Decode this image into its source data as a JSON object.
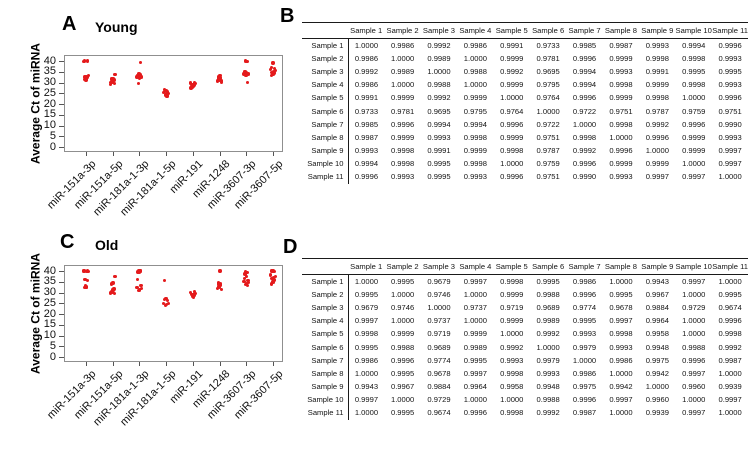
{
  "figure": {
    "panels": [
      {
        "label": "A",
        "title": "Young"
      },
      {
        "label": "B"
      },
      {
        "label": "C",
        "title": "Old"
      },
      {
        "label": "D"
      }
    ]
  },
  "colors": {
    "point": "#e41a1c",
    "axis_frame": "#8f8f8f",
    "text": "#000000",
    "table_rule": "#1a1a1a"
  },
  "chart_data": [
    {
      "type": "scatter",
      "panel": "A",
      "title": "Young",
      "xlabel": "",
      "ylabel": "Average Ct of miRNA",
      "ylim": [
        0,
        40
      ],
      "yticks": [
        40,
        35,
        30,
        25,
        20,
        15,
        10,
        5,
        0
      ],
      "grid": false,
      "legend": null,
      "point_color": "#e41a1c",
      "categories": [
        "miR-151a-3p",
        "miR-151a-5p",
        "miR-181a-1-3p",
        "miR-181a-1-5p",
        "miR-191",
        "miR-1248",
        "miR-3607-3p",
        "miR-3607-5p"
      ],
      "points_by_category": [
        [
          40,
          40,
          39.8,
          33.2,
          32.8,
          32.5,
          32.2,
          32,
          31.8,
          31.5,
          31.2
        ],
        [
          33.6,
          32,
          31.6,
          31.2,
          31,
          30.8,
          30.4,
          30.2,
          30,
          29.6,
          29.2
        ],
        [
          39.4,
          34,
          33.6,
          33.4,
          33.2,
          33,
          32.8,
          32.6,
          32.4,
          32,
          29.4
        ],
        [
          26.8,
          26.2,
          25.8,
          25.6,
          25.4,
          25,
          24.8,
          24.4,
          24,
          23.8,
          23.4
        ],
        [
          30,
          29.8,
          29.4,
          29.2,
          29,
          28.8,
          28.6,
          28.2,
          28,
          27.8,
          27.4
        ],
        [
          33.2,
          32.6,
          32.2,
          32,
          31.8,
          31.6,
          31.2,
          31,
          30.8,
          30.4,
          30.2
        ],
        [
          40,
          39.8,
          35.2,
          34.8,
          34.4,
          34.2,
          34,
          33.8,
          33.4,
          33.2,
          30
        ],
        [
          39,
          37,
          36.4,
          36,
          35.6,
          35.2,
          34.8,
          34.4,
          34,
          33.6,
          33.2
        ]
      ]
    },
    {
      "type": "table",
      "panel": "B",
      "columns": [
        "Sample 1",
        "Sample 2",
        "Sample 3",
        "Sample 4",
        "Sample 5",
        "Sample 6",
        "Sample 7",
        "Sample 8",
        "Sample 9",
        "Sample 10",
        "Sample 11"
      ],
      "row_labels": [
        "Sample 1",
        "Sample 2",
        "Sample 3",
        "Sample 4",
        "Sample 5",
        "Sample 6",
        "Sample 7",
        "Sample 8",
        "Sample 9",
        "Sample 10",
        "Sample 11"
      ],
      "rows": [
        [
          "1.0000",
          "0.9986",
          "0.9992",
          "0.9986",
          "0.9991",
          "0.9733",
          "0.9985",
          "0.9987",
          "0.9993",
          "0.9994",
          "0.9996"
        ],
        [
          "0.9986",
          "1.0000",
          "0.9989",
          "1.0000",
          "0.9999",
          "0.9781",
          "0.9996",
          "0.9999",
          "0.9998",
          "0.9998",
          "0.9993"
        ],
        [
          "0.9992",
          "0.9989",
          "1.0000",
          "0.9988",
          "0.9992",
          "0.9695",
          "0.9994",
          "0.9993",
          "0.9991",
          "0.9995",
          "0.9995"
        ],
        [
          "0.9986",
          "1.0000",
          "0.9988",
          "1.0000",
          "0.9999",
          "0.9795",
          "0.9994",
          "0.9998",
          "0.9999",
          "0.9998",
          "0.9993"
        ],
        [
          "0.9991",
          "0.9999",
          "0.9992",
          "0.9999",
          "1.0000",
          "0.9764",
          "0.9996",
          "0.9999",
          "0.9998",
          "1.0000",
          "0.9996"
        ],
        [
          "0.9733",
          "0.9781",
          "0.9695",
          "0.9795",
          "0.9764",
          "1.0000",
          "0.9722",
          "0.9751",
          "0.9787",
          "0.9759",
          "0.9751"
        ],
        [
          "0.9985",
          "0.9996",
          "0.9994",
          "0.9994",
          "0.9996",
          "0.9722",
          "1.0000",
          "0.9998",
          "0.9992",
          "0.9996",
          "0.9990"
        ],
        [
          "0.9987",
          "0.9999",
          "0.9993",
          "0.9998",
          "0.9999",
          "0.9751",
          "0.9998",
          "1.0000",
          "0.9996",
          "0.9999",
          "0.9993"
        ],
        [
          "0.9993",
          "0.9998",
          "0.9991",
          "0.9999",
          "0.9998",
          "0.9787",
          "0.9992",
          "0.9996",
          "1.0000",
          "0.9999",
          "0.9997"
        ],
        [
          "0.9994",
          "0.9998",
          "0.9995",
          "0.9998",
          "1.0000",
          "0.9759",
          "0.9996",
          "0.9999",
          "0.9999",
          "1.0000",
          "0.9997"
        ],
        [
          "0.9996",
          "0.9993",
          "0.9995",
          "0.9993",
          "0.9996",
          "0.9751",
          "0.9990",
          "0.9993",
          "0.9997",
          "0.9997",
          "1.0000"
        ]
      ]
    },
    {
      "type": "scatter",
      "panel": "C",
      "title": "Old",
      "xlabel": "",
      "ylabel": "Average Ct of miRNA",
      "ylim": [
        0,
        40
      ],
      "yticks": [
        40,
        35,
        30,
        25,
        20,
        15,
        10,
        5,
        0
      ],
      "grid": false,
      "legend": null,
      "point_color": "#e41a1c",
      "categories": [
        "miR-151a-3p",
        "miR-151a-5p",
        "miR-181a-1-3p",
        "miR-181a-1-5p",
        "miR-191",
        "miR-1248",
        "miR-3607-3p",
        "miR-3607-5p"
      ],
      "points_by_category": [
        [
          40,
          40,
          40,
          39.8,
          39.8,
          36,
          35.6,
          33,
          32.6,
          32.4,
          32.2
        ],
        [
          37.4,
          34.4,
          34,
          31.6,
          31.2,
          30.8,
          30.6,
          30.2,
          30,
          29.6,
          29.4
        ],
        [
          40,
          40,
          40,
          39.6,
          39.4,
          36,
          33.4,
          32.2,
          31.8,
          31.2,
          30.8
        ],
        [
          35.6,
          27.2,
          26.8,
          26.4,
          25,
          24.8,
          24.4,
          24
        ],
        [
          30.4,
          30,
          29.6,
          29.2,
          29,
          28.6,
          28.2,
          27.8
        ],
        [
          40,
          34.4,
          34,
          33.6,
          33.2,
          32.8,
          32.2,
          31.8,
          31.4
        ],
        [
          39.6,
          39.2,
          38.6,
          37.6,
          36.6,
          35.6,
          35,
          34.6,
          34.2,
          33.8,
          33.2
        ],
        [
          40,
          40,
          39.8,
          38.2,
          37.6,
          37,
          36.4,
          35.8,
          35,
          34.6,
          34
        ]
      ]
    },
    {
      "type": "table",
      "panel": "D",
      "columns": [
        "Sample 1",
        "Sample 2",
        "Sample 3",
        "Sample 4",
        "Sample 5",
        "Sample 6",
        "Sample 7",
        "Sample 8",
        "Sample 9",
        "Sample 10",
        "Sample 11"
      ],
      "row_labels": [
        "Sample 1",
        "Sample 2",
        "Sample 3",
        "Sample 4",
        "Sample 5",
        "Sample 6",
        "Sample 7",
        "Sample 8",
        "Sample 9",
        "Sample 10",
        "Sample 11"
      ],
      "rows": [
        [
          "1.0000",
          "0.9995",
          "0.9679",
          "0.9997",
          "0.9998",
          "0.9995",
          "0.9986",
          "1.0000",
          "0.9943",
          "0.9997",
          "1.0000"
        ],
        [
          "0.9995",
          "1.0000",
          "0.9746",
          "1.0000",
          "0.9999",
          "0.9988",
          "0.9996",
          "0.9995",
          "0.9967",
          "1.0000",
          "0.9995"
        ],
        [
          "0.9679",
          "0.9746",
          "1.0000",
          "0.9737",
          "0.9719",
          "0.9689",
          "0.9774",
          "0.9678",
          "0.9884",
          "0.9729",
          "0.9674"
        ],
        [
          "0.9997",
          "1.0000",
          "0.9737",
          "1.0000",
          "0.9999",
          "0.9989",
          "0.9995",
          "0.9997",
          "0.9964",
          "1.0000",
          "0.9996"
        ],
        [
          "0.9998",
          "0.9999",
          "0.9719",
          "0.9999",
          "1.0000",
          "0.9992",
          "0.9993",
          "0.9998",
          "0.9958",
          "1.0000",
          "0.9998"
        ],
        [
          "0.9995",
          "0.9988",
          "0.9689",
          "0.9989",
          "0.9992",
          "1.0000",
          "0.9979",
          "0.9993",
          "0.9948",
          "0.9988",
          "0.9992"
        ],
        [
          "0.9986",
          "0.9996",
          "0.9774",
          "0.9995",
          "0.9993",
          "0.9979",
          "1.0000",
          "0.9986",
          "0.9975",
          "0.9996",
          "0.9987"
        ],
        [
          "1.0000",
          "0.9995",
          "0.9678",
          "0.9997",
          "0.9998",
          "0.9993",
          "0.9986",
          "1.0000",
          "0.9942",
          "0.9997",
          "1.0000"
        ],
        [
          "0.9943",
          "0.9967",
          "0.9884",
          "0.9964",
          "0.9958",
          "0.9948",
          "0.9975",
          "0.9942",
          "1.0000",
          "0.9960",
          "0.9939"
        ],
        [
          "0.9997",
          "1.0000",
          "0.9729",
          "1.0000",
          "1.0000",
          "0.9988",
          "0.9996",
          "0.9997",
          "0.9960",
          "1.0000",
          "0.9997"
        ],
        [
          "1.0000",
          "0.9995",
          "0.9674",
          "0.9996",
          "0.9998",
          "0.9992",
          "0.9987",
          "1.0000",
          "0.9939",
          "0.9997",
          "1.0000"
        ]
      ]
    }
  ]
}
